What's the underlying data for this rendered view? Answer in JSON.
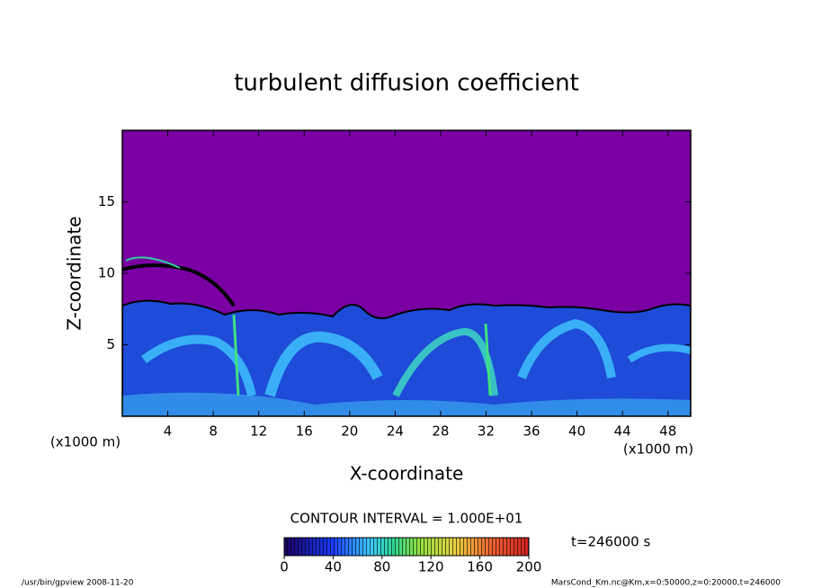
{
  "chart_data": {
    "type": "contour",
    "title": "turbulent diffusion coefficient",
    "x_label": "X-coordinate",
    "y_label": "Z-coordinate",
    "x_unit_labels": [
      "(x1000 m)",
      "(x1000 m)"
    ],
    "xlim": [
      0,
      50
    ],
    "xticks": [
      4,
      8,
      12,
      16,
      20,
      24,
      28,
      32,
      36,
      40,
      44,
      48
    ],
    "ylim": [
      0,
      20
    ],
    "yticks": [
      5,
      10,
      15
    ],
    "contour_interval_text": "CONTOUR INTERVAL = 1.000E+01",
    "colorbar_lim": [
      0,
      200
    ],
    "colorbar_ticks": [
      0,
      40,
      80,
      120,
      160,
      200
    ],
    "time_text": "t=246000 s",
    "footer_left": "/usr/bin/gpview  2008-11-20",
    "footer_right": "MarsCond_Km.nc@Km,x=0:50000,z=0:20000,t=246000"
  }
}
